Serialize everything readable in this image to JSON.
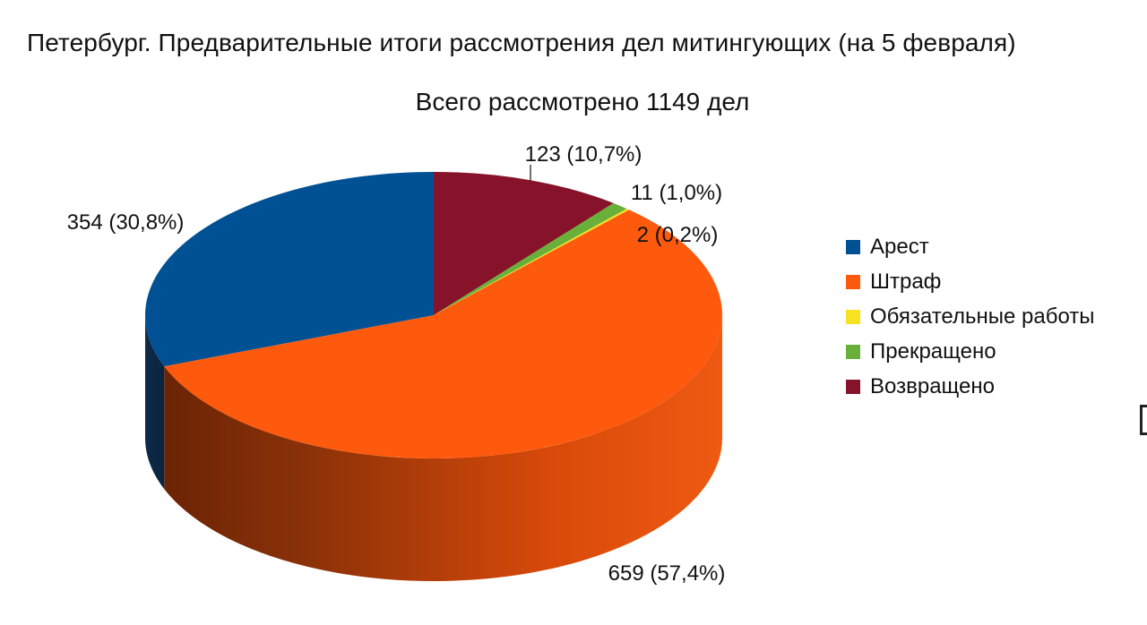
{
  "chart_data": {
    "type": "pie",
    "title": "Петербург. Предварительные итоги рассмотрения дел митингующих (на 5 февраля)",
    "subtitle": "Всего рассмотрено 1149 дел",
    "legend_position": "right",
    "slices": [
      {
        "name": "Арест",
        "value": 354,
        "label": "354 (30,8%)",
        "color": "#005193"
      },
      {
        "name": "Штраф",
        "value": 659,
        "label": "659 (57,4%)",
        "color": "#fd5a0e"
      },
      {
        "name": "Обязательные работы",
        "value": 2,
        "label": "2 (0,2%)",
        "color": "#f6e123"
      },
      {
        "name": "Прекращено",
        "value": 11,
        "label": "11 (1,0%)",
        "color": "#68b03a"
      },
      {
        "name": "Возвращено",
        "value": 123,
        "label": "123 (10,7%)",
        "color": "#861329"
      }
    ]
  }
}
